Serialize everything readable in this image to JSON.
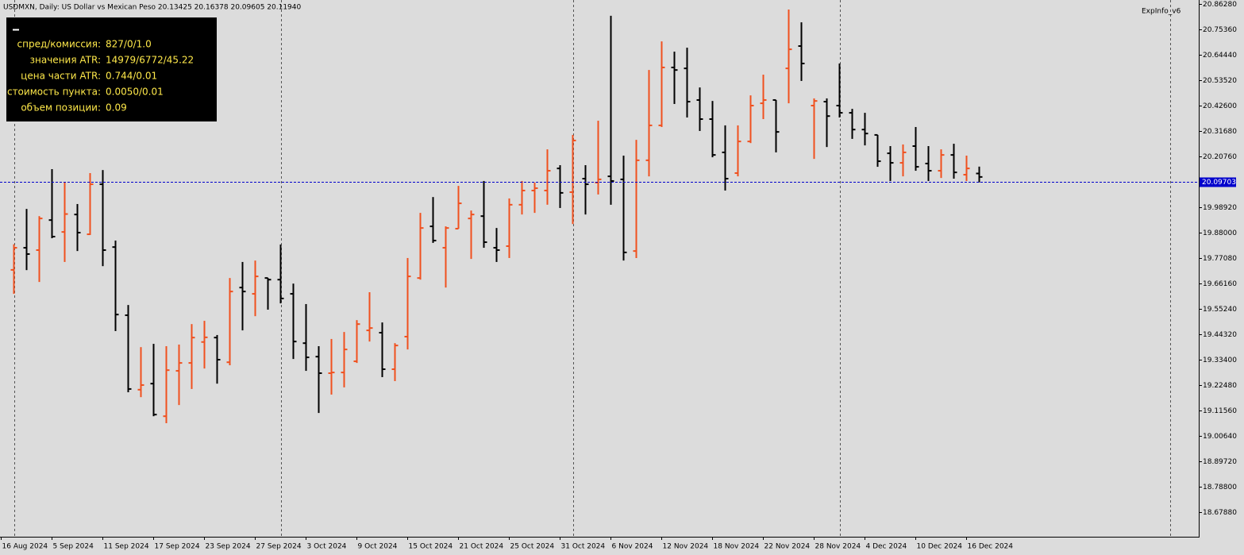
{
  "chart_data": {
    "type": "ohlc",
    "title": "USDMXN, Daily:  US Dollar vs Mexican Peso  20.13425 20.16378 20.09605 20.11940",
    "indicator_label": "ExpInfo_v6",
    "info_panel": [
      {
        "label": "спред/комиссия:",
        "value": "827/0/1.0"
      },
      {
        "label": "значения ATR:",
        "value": "14979/6772/45.22"
      },
      {
        "label": "цена части ATR:",
        "value": "0.744/0.01"
      },
      {
        "label": "стоимость пункта:",
        "value": "0.0050/0.01"
      },
      {
        "label": "объем позиции:",
        "value": "0.09"
      }
    ],
    "categories": [
      "16 Aug 2024",
      null,
      null,
      null,
      "5 Sep 2024",
      null,
      null,
      null,
      "11 Sep 2024",
      null,
      null,
      null,
      "17 Sep 2024",
      null,
      null,
      null,
      "23 Sep 2024",
      null,
      null,
      null,
      "27 Sep 2024",
      null,
      null,
      null,
      "3 Oct 2024",
      null,
      null,
      null,
      "9 Oct 2024",
      null,
      null,
      null,
      "15 Oct 2024",
      null,
      null,
      null,
      "21 Oct 2024",
      null,
      null,
      null,
      "25 Oct 2024",
      null,
      null,
      null,
      "31 Oct 2024",
      null,
      null,
      null,
      "6 Nov 2024",
      null,
      null,
      null,
      "12 Nov 2024",
      null,
      null,
      null,
      "18 Nov 2024",
      null,
      null,
      null,
      "22 Nov 2024",
      null,
      null,
      null,
      "28 Nov 2024",
      null,
      null,
      null,
      "4 Dec 2024",
      null,
      null,
      null,
      "10 Dec 2024",
      null,
      null,
      null,
      "16 Dec 2024",
      null
    ],
    "open": [
      null,
      19.72,
      19.815,
      19.805,
      19.934,
      19.883,
      19.958,
      19.873,
      20.088,
      19.818,
      19.525,
      19.205,
      19.231,
      19.091,
      19.286,
      19.32,
      19.41,
      19.429,
      19.323,
      19.644,
      19.617,
      19.685,
      19.678,
      19.617,
      19.405,
      19.347,
      19.276,
      19.279,
      19.327,
      19.46,
      19.45,
      19.293,
      19.433,
      19.685,
      19.907,
      19.815,
      19.897,
      19.941,
      19.951,
      19.815,
      19.822,
      20.0,
      20.061,
      20.061,
      20.156,
      20.054,
      20.112,
      20.095,
      20.122,
      20.109,
      19.801,
      20.191,
      20.341,
      20.59,
      20.586,
      20.45,
      20.368,
      20.225,
      20.136,
      20.272,
      20.436,
      20.45,
      20.586,
      20.682,
      20.426,
      20.443,
      20.426,
      20.395,
      20.323,
      20.3,
      20.221,
      20.18,
      20.252,
      20.177,
      20.146,
      20.214,
      20.129,
      20.13425
    ],
    "high": [
      null,
      19.83,
      19.982,
      19.951,
      20.153,
      20.098,
      20.003,
      20.136,
      20.149,
      19.846,
      19.569,
      19.388,
      19.402,
      19.392,
      19.399,
      19.487,
      19.501,
      19.44,
      19.685,
      19.754,
      19.76,
      19.685,
      19.829,
      19.661,
      19.573,
      19.392,
      19.423,
      19.453,
      19.504,
      19.624,
      19.494,
      19.405,
      19.771,
      19.965,
      20.033,
      19.907,
      20.081,
      19.975,
      20.102,
      19.9,
      20.027,
      20.102,
      20.095,
      20.238,
      20.17,
      20.3,
      20.17,
      20.361,
      20.812,
      20.211,
      20.279,
      20.579,
      20.702,
      20.658,
      20.675,
      20.504,
      20.446,
      20.341,
      20.341,
      20.47,
      20.559,
      20.45,
      20.839,
      20.784,
      20.457,
      20.457,
      20.607,
      20.412,
      20.395,
      20.3,
      20.252,
      20.259,
      20.334,
      20.252,
      20.238,
      20.262,
      20.211,
      20.16378
    ],
    "low": [
      null,
      19.617,
      19.719,
      19.668,
      19.856,
      19.754,
      19.801,
      19.87,
      19.736,
      19.457,
      19.194,
      19.173,
      19.091,
      19.061,
      19.139,
      19.208,
      19.296,
      19.231,
      19.31,
      19.46,
      19.521,
      19.549,
      19.576,
      19.337,
      19.286,
      19.105,
      19.184,
      19.215,
      19.32,
      19.412,
      19.259,
      19.242,
      19.378,
      19.678,
      19.836,
      19.644,
      19.897,
      19.767,
      19.815,
      19.754,
      19.771,
      19.958,
      19.965,
      20.0,
      19.986,
      19.917,
      19.958,
      20.044,
      20.0,
      19.76,
      19.771,
      20.122,
      20.334,
      20.433,
      20.375,
      20.317,
      20.204,
      20.061,
      20.122,
      20.265,
      20.368,
      20.225,
      20.436,
      20.532,
      20.197,
      20.248,
      20.375,
      20.283,
      20.255,
      20.163,
      20.102,
      20.122,
      20.146,
      20.102,
      20.115,
      20.112,
      20.102,
      20.09605
    ],
    "close": [
      null,
      19.815,
      19.788,
      19.941,
      19.863,
      19.96,
      19.88,
      20.088,
      19.805,
      19.528,
      19.208,
      19.225,
      19.098,
      19.289,
      19.32,
      19.429,
      19.43,
      19.334,
      19.627,
      19.627,
      19.692,
      19.678,
      19.597,
      19.412,
      19.344,
      19.276,
      19.279,
      19.378,
      19.487,
      19.47,
      19.293,
      19.395,
      19.692,
      19.9,
      19.846,
      19.9,
      20.006,
      19.958,
      19.839,
      19.805,
      20.0,
      20.061,
      20.071,
      20.146,
      20.051,
      20.276,
      20.088,
      20.109,
      20.102,
      19.795,
      20.191,
      20.341,
      20.59,
      20.579,
      20.443,
      20.368,
      20.214,
      20.112,
      20.272,
      20.426,
      20.45,
      20.313,
      20.668,
      20.607,
      20.446,
      20.381,
      20.395,
      20.323,
      20.306,
      20.187,
      20.18,
      20.225,
      20.163,
      20.146,
      20.214,
      20.139,
      20.156,
      20.1194
    ],
    "up_color": "#f0501e",
    "down_color": "#000000",
    "current_price": {
      "value": 20.09703,
      "label": "20.09703"
    },
    "ylim": [
      18.573,
      20.8799
    ],
    "yticks": [
      {
        "value": 20.8628,
        "label": "20.86280"
      },
      {
        "value": 20.7536,
        "label": "20.75360"
      },
      {
        "value": 20.6444,
        "label": "20.64440"
      },
      {
        "value": 20.5352,
        "label": "20.53520"
      },
      {
        "value": 20.426,
        "label": "20.42600"
      },
      {
        "value": 20.3168,
        "label": "20.31680"
      },
      {
        "value": 20.2076,
        "label": "20.20760"
      },
      {
        "value": 19.9892,
        "label": "19.98920"
      },
      {
        "value": 19.88,
        "label": "19.88000"
      },
      {
        "value": 19.7708,
        "label": "19.77080"
      },
      {
        "value": 19.6616,
        "label": "19.66160"
      },
      {
        "value": 19.5524,
        "label": "19.55240"
      },
      {
        "value": 19.4432,
        "label": "19.44320"
      },
      {
        "value": 19.334,
        "label": "19.33400"
      },
      {
        "value": 19.2248,
        "label": "19.22480"
      },
      {
        "value": 19.1156,
        "label": "19.11560"
      },
      {
        "value": 19.0064,
        "label": "19.00640"
      },
      {
        "value": 18.8972,
        "label": "18.89720"
      },
      {
        "value": 18.788,
        "label": "18.78800"
      },
      {
        "value": 18.6788,
        "label": "18.67880"
      }
    ]
  }
}
